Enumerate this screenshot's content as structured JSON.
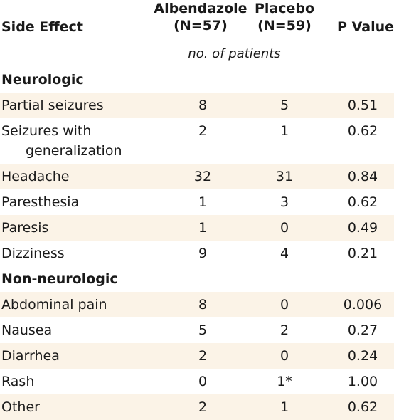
{
  "header": {
    "side_effect": "Side Effect",
    "albendazole_line1": "Albendazole",
    "albendazole_line2": "(N=57)",
    "placebo_line1": "Placebo",
    "placebo_line2": "(N=59)",
    "p_value": "P Value"
  },
  "units": "no. of patients",
  "sections": [
    {
      "title": "Neurologic",
      "rows": [
        {
          "name": "Partial seizures",
          "albendazole": "8",
          "placebo": "5",
          "p": "0.51"
        },
        {
          "name": "Seizures with",
          "name_line2": "generalization",
          "albendazole": "2",
          "placebo": "1",
          "p": "0.62"
        },
        {
          "name": "Headache",
          "albendazole": "32",
          "placebo": "31",
          "p": "0.84"
        },
        {
          "name": "Paresthesia",
          "albendazole": "1",
          "placebo": "3",
          "p": "0.62"
        },
        {
          "name": "Paresis",
          "albendazole": "1",
          "placebo": "0",
          "p": "0.49"
        },
        {
          "name": "Dizziness",
          "albendazole": "9",
          "placebo": "4",
          "p": "0.21"
        }
      ]
    },
    {
      "title": "Non-neurologic",
      "rows": [
        {
          "name": "Abdominal pain",
          "albendazole": "8",
          "placebo": "0",
          "p": "0.006"
        },
        {
          "name": "Nausea",
          "albendazole": "5",
          "placebo": "2",
          "p": "0.27"
        },
        {
          "name": "Diarrhea",
          "albendazole": "2",
          "placebo": "0",
          "p": "0.24"
        },
        {
          "name": "Rash",
          "albendazole": "0",
          "placebo": "1*",
          "p": "1.00"
        },
        {
          "name": "Other",
          "albendazole": "2",
          "placebo": "1",
          "p": "0.62"
        }
      ]
    }
  ],
  "colors": {
    "row_shade": "#fbf3e7",
    "text": "#1a1a1a"
  }
}
